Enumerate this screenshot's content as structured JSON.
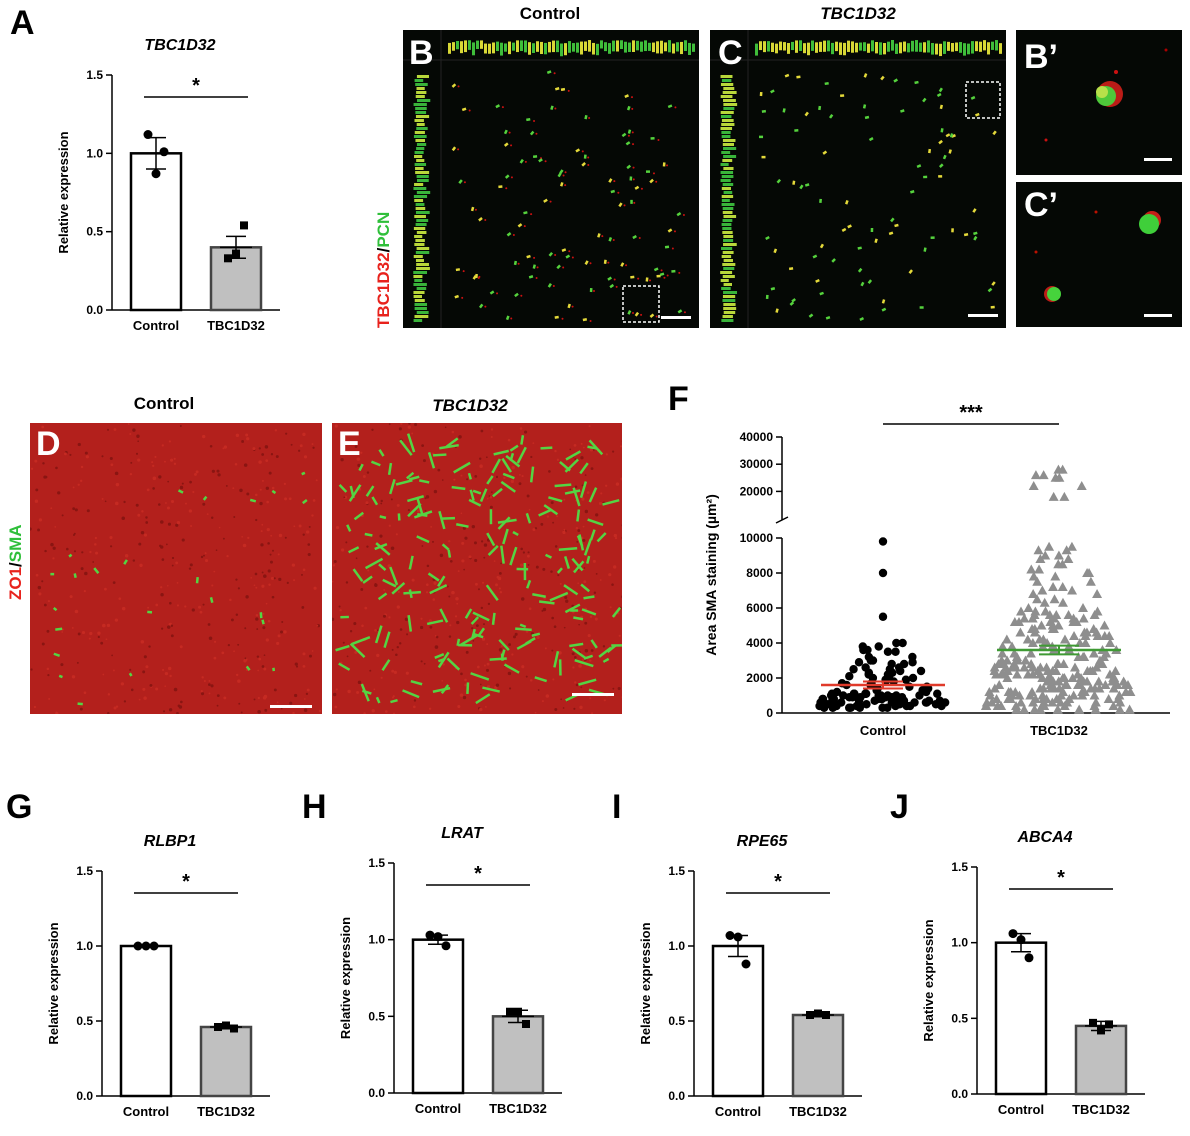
{
  "figure": {
    "panels": {
      "A": "A",
      "B": "B",
      "C": "C",
      "B_prime": "B’",
      "C_prime": "C’",
      "D": "D",
      "E": "E",
      "F": "F",
      "G": "G",
      "H": "H",
      "I": "I",
      "J": "J"
    },
    "titles": {
      "B": "Control",
      "C": "TBC1D32",
      "D": "Control",
      "E": "TBC1D32"
    },
    "stain_BC": {
      "red": "TBC1D32",
      "sep": "/",
      "green": "PCN"
    },
    "stain_DE": {
      "red": "ZO1",
      "sep": "/",
      "green": "SMA"
    },
    "colors": {
      "red_stain": "#e8221c",
      "green_stain": "#2fbf3a",
      "control_bar": "#ffffff",
      "tbc_bar": "#c0c0c0",
      "control_mean": "#e03a2a",
      "tbc_mean": "#3f9a34"
    }
  },
  "chart_data": [
    {
      "id": "A",
      "type": "bar",
      "title": "TBC1D32",
      "categories": [
        "Control",
        "TBC1D32"
      ],
      "values": [
        1.0,
        0.4
      ],
      "errors": [
        0.1,
        0.07
      ],
      "points": [
        [
          1.12,
          0.87,
          1.01
        ],
        [
          0.33,
          0.36,
          0.54
        ]
      ],
      "ylabel": "Relative expression",
      "ylim": [
        0,
        1.5
      ],
      "yticks": [
        "0.0",
        "0.5",
        "1.0",
        "1.5"
      ],
      "significance": "*"
    },
    {
      "id": "G",
      "type": "bar",
      "title": "RLBP1",
      "categories": [
        "Control",
        "TBC1D32"
      ],
      "values": [
        1.0,
        0.46
      ],
      "errors": [
        0.003,
        0.01
      ],
      "points": [
        [
          1.0,
          1.0,
          1.0
        ],
        [
          0.46,
          0.47,
          0.45
        ]
      ],
      "ylabel": "Relative expression",
      "ylim": [
        0,
        1.5
      ],
      "yticks": [
        "0.0",
        "0.5",
        "1.0",
        "1.5"
      ],
      "significance": "*"
    },
    {
      "id": "H",
      "type": "bar",
      "title": "LRAT",
      "categories": [
        "Control",
        "TBC1D32"
      ],
      "values": [
        1.0,
        0.5
      ],
      "errors": [
        0.03,
        0.04
      ],
      "points": [
        [
          1.03,
          1.02,
          0.96
        ],
        [
          0.53,
          0.53,
          0.45
        ]
      ],
      "ylabel": "Relative expression",
      "ylim": [
        0,
        1.5
      ],
      "yticks": [
        "0.0",
        "0.5",
        "1.0",
        "1.5"
      ],
      "significance": "*"
    },
    {
      "id": "I",
      "type": "bar",
      "title": "RPE65",
      "categories": [
        "Control",
        "TBC1D32"
      ],
      "values": [
        1.0,
        0.54
      ],
      "errors": [
        0.07,
        0.01
      ],
      "points": [
        [
          1.07,
          1.06,
          0.88
        ],
        [
          0.54,
          0.55,
          0.54
        ]
      ],
      "ylabel": "Relative expression",
      "ylim": [
        0,
        1.5
      ],
      "yticks": [
        "0.0",
        "0.5",
        "1.0",
        "1.5"
      ],
      "significance": "*"
    },
    {
      "id": "J",
      "type": "bar",
      "title": "ABCA4",
      "categories": [
        "Control",
        "TBC1D32"
      ],
      "values": [
        1.0,
        0.45
      ],
      "errors": [
        0.06,
        0.03
      ],
      "points": [
        [
          1.06,
          1.02,
          0.9
        ],
        [
          0.47,
          0.42,
          0.46
        ]
      ],
      "ylabel": "Relative expression",
      "ylim": [
        0,
        1.5
      ],
      "yticks": [
        "0.0",
        "0.5",
        "1.0",
        "1.5"
      ],
      "significance": "*"
    },
    {
      "id": "F",
      "type": "scatter",
      "categories": [
        "Control",
        "TBC1D32"
      ],
      "ylabel": "Area SMA staining (µm²)",
      "yticks_lower": [
        "0",
        "2000",
        "4000",
        "6000",
        "8000",
        "10000"
      ],
      "yticks_upper": [
        "20000",
        "30000",
        "40000"
      ],
      "broken_axis": {
        "lower": [
          0,
          10000
        ],
        "upper": [
          15000,
          40000
        ]
      },
      "means": [
        1600,
        3600
      ],
      "sem": [
        200,
        250
      ],
      "significance": "***",
      "control_highlight_values": [
        9800,
        8000,
        5500,
        4000,
        3800,
        3600,
        3500,
        3200,
        3000,
        2900,
        2800,
        2600,
        2500,
        2400,
        2300,
        2200,
        2100,
        2000,
        1900,
        1800,
        1700,
        1600,
        1500,
        1400,
        1300,
        1200,
        1100,
        1000,
        900,
        800,
        700,
        600,
        500,
        400,
        300
      ],
      "tbc_highlight_values": [
        28000,
        26000,
        25000,
        22000,
        18000,
        9500,
        9300,
        9000,
        8800,
        8500,
        8200,
        8000,
        7800,
        7500,
        7200,
        7000,
        6800,
        6500,
        6300,
        6000,
        5800,
        5600,
        5400,
        5200,
        5000,
        4800,
        4600,
        4400,
        4200,
        4000,
        3800,
        3600,
        3400,
        3200,
        3000,
        2800,
        2600,
        2400,
        2200,
        2000,
        1800,
        1600,
        1400,
        1200,
        1000,
        800,
        600,
        400,
        200
      ]
    }
  ]
}
